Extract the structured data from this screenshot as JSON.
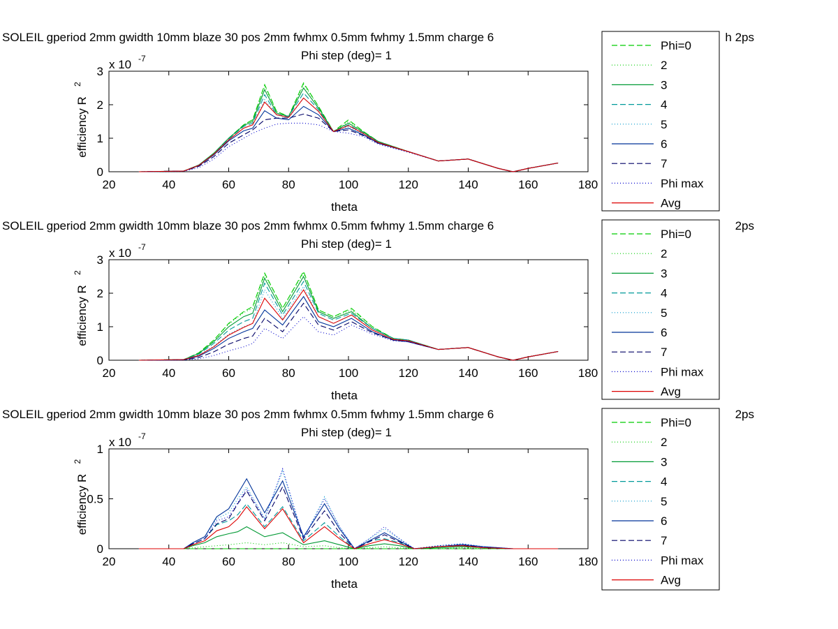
{
  "chart_data": [
    {
      "type": "line",
      "title": "SOLEIL gperiod 2mm gwidth 10mm blaze 30 pos 2mm fwhmx 0.5mm fwhmy 1.5mm charge 6",
      "title_right": "h 2ps",
      "subtitle": "Phi step (deg)= 1",
      "xlabel": "theta",
      "ylabel": "efficiency R",
      "ylabel_sup": "2",
      "y_exponent": "x 10",
      "y_exponent_sup": "-7",
      "xlim": [
        20,
        180
      ],
      "ylim": [
        0,
        3
      ],
      "xticks": [
        20,
        40,
        60,
        80,
        100,
        120,
        140,
        160,
        180
      ],
      "yticks": [
        0,
        1,
        2,
        3
      ],
      "grid": false,
      "legend_position": "right",
      "x": [
        30,
        45,
        50,
        55,
        60,
        65,
        68,
        72,
        76,
        80,
        85,
        90,
        95,
        100,
        105,
        110,
        120,
        130,
        140,
        150,
        155,
        160,
        170
      ],
      "series": [
        {
          "name": "Phi=0",
          "color": "#00cc00",
          "dash": "8,4",
          "values": [
            0,
            0.02,
            0.2,
            0.55,
            1.0,
            1.4,
            1.55,
            2.6,
            1.8,
            1.65,
            2.65,
            1.95,
            1.2,
            1.55,
            1.2,
            0.9,
            0.6,
            0.32,
            0.38,
            0.1,
            0,
            0.1,
            0.26
          ]
        },
        {
          "name": "2",
          "color": "#00cc00",
          "dash": "1,3",
          "values": [
            0,
            0.02,
            0.2,
            0.55,
            1.0,
            1.4,
            1.55,
            2.55,
            1.8,
            1.65,
            2.6,
            1.95,
            1.2,
            1.5,
            1.2,
            0.9,
            0.6,
            0.32,
            0.38,
            0.1,
            0,
            0.1,
            0.26
          ]
        },
        {
          "name": "3",
          "color": "#009933",
          "dash": "",
          "values": [
            0,
            0.02,
            0.2,
            0.55,
            1.0,
            1.38,
            1.5,
            2.45,
            1.75,
            1.65,
            2.5,
            1.9,
            1.2,
            1.45,
            1.18,
            0.9,
            0.6,
            0.32,
            0.38,
            0.1,
            0,
            0.1,
            0.26
          ]
        },
        {
          "name": "4",
          "color": "#009999",
          "dash": "8,4",
          "values": [
            0,
            0.02,
            0.2,
            0.53,
            0.98,
            1.35,
            1.45,
            2.3,
            1.7,
            1.65,
            2.35,
            1.85,
            1.2,
            1.4,
            1.15,
            0.88,
            0.6,
            0.32,
            0.38,
            0.1,
            0,
            0.1,
            0.26
          ]
        },
        {
          "name": "5",
          "color": "#0099cc",
          "dash": "1,3",
          "values": [
            0,
            0.02,
            0.19,
            0.52,
            0.96,
            1.3,
            1.4,
            2.15,
            1.7,
            1.6,
            2.2,
            1.8,
            1.2,
            1.35,
            1.12,
            0.87,
            0.6,
            0.32,
            0.38,
            0.1,
            0,
            0.1,
            0.26
          ]
        },
        {
          "name": "6",
          "color": "#003399",
          "dash": "",
          "values": [
            0,
            0.02,
            0.18,
            0.5,
            0.92,
            1.22,
            1.3,
            1.82,
            1.6,
            1.55,
            1.95,
            1.7,
            1.2,
            1.3,
            1.1,
            0.85,
            0.6,
            0.32,
            0.38,
            0.1,
            0,
            0.1,
            0.26
          ]
        },
        {
          "name": "7",
          "color": "#000066",
          "dash": "8,4",
          "values": [
            0,
            0.02,
            0.16,
            0.45,
            0.85,
            1.1,
            1.25,
            1.55,
            1.6,
            1.6,
            1.72,
            1.6,
            1.2,
            1.25,
            1.08,
            0.85,
            0.6,
            0.32,
            0.38,
            0.1,
            0,
            0.1,
            0.26
          ]
        },
        {
          "name": "Phi max",
          "color": "#0000cc",
          "dash": "1,3",
          "values": [
            0,
            0.01,
            0.12,
            0.38,
            0.75,
            1.0,
            1.15,
            1.3,
            1.42,
            1.45,
            1.45,
            1.4,
            1.2,
            1.15,
            1.05,
            0.82,
            0.58,
            0.32,
            0.38,
            0.1,
            0,
            0.1,
            0.26
          ]
        },
        {
          "name": "Avg",
          "color": "#dd0000",
          "dash": "",
          "values": [
            0,
            0.02,
            0.19,
            0.52,
            0.95,
            1.3,
            1.4,
            2.08,
            1.7,
            1.62,
            2.2,
            1.8,
            1.2,
            1.38,
            1.14,
            0.87,
            0.6,
            0.32,
            0.38,
            0.1,
            0,
            0.1,
            0.26
          ]
        }
      ]
    },
    {
      "type": "line",
      "title": "SOLEIL gperiod 2mm gwidth 10mm blaze 30 pos 2mm fwhmx 0.5mm fwhmy 1.5mm charge 6",
      "title_right": "2ps",
      "subtitle": "Phi step (deg)= 1",
      "xlabel": "theta",
      "ylabel": "efficiency R",
      "ylabel_sup": "2",
      "y_exponent": "x 10",
      "y_exponent_sup": "-7",
      "xlim": [
        20,
        180
      ],
      "ylim": [
        0,
        3
      ],
      "xticks": [
        20,
        40,
        60,
        80,
        100,
        120,
        140,
        160,
        180
      ],
      "yticks": [
        0,
        1,
        2,
        3
      ],
      "grid": false,
      "legend_position": "right",
      "x": [
        30,
        45,
        50,
        55,
        60,
        65,
        68,
        72,
        78,
        85,
        90,
        95,
        101,
        108,
        115,
        120,
        130,
        140,
        150,
        155,
        160,
        170
      ],
      "series": [
        {
          "name": "Phi=0",
          "color": "#00cc00",
          "dash": "8,4",
          "values": [
            0,
            0.02,
            0.22,
            0.6,
            1.1,
            1.45,
            1.6,
            2.6,
            1.55,
            2.65,
            1.5,
            1.3,
            1.55,
            1.0,
            0.65,
            0.6,
            0.32,
            0.38,
            0.1,
            0,
            0.1,
            0.26
          ]
        },
        {
          "name": "2",
          "color": "#00cc00",
          "dash": "1,3",
          "values": [
            0,
            0.02,
            0.21,
            0.58,
            1.08,
            1.42,
            1.55,
            2.55,
            1.55,
            2.6,
            1.5,
            1.3,
            1.5,
            1.0,
            0.65,
            0.6,
            0.32,
            0.38,
            0.1,
            0,
            0.1,
            0.26
          ]
        },
        {
          "name": "3",
          "color": "#009933",
          "dash": "",
          "values": [
            0,
            0.02,
            0.2,
            0.55,
            1.0,
            1.3,
            1.4,
            2.45,
            1.45,
            2.5,
            1.45,
            1.25,
            1.45,
            0.95,
            0.65,
            0.6,
            0.32,
            0.38,
            0.1,
            0,
            0.1,
            0.26
          ]
        },
        {
          "name": "4",
          "color": "#009999",
          "dash": "8,4",
          "values": [
            0,
            0.02,
            0.18,
            0.5,
            0.9,
            1.15,
            1.25,
            2.3,
            1.35,
            2.35,
            1.4,
            1.2,
            1.4,
            0.95,
            0.65,
            0.6,
            0.32,
            0.38,
            0.1,
            0,
            0.1,
            0.26
          ]
        },
        {
          "name": "5",
          "color": "#0099cc",
          "dash": "1,3",
          "values": [
            0,
            0.02,
            0.15,
            0.42,
            0.78,
            1.0,
            1.1,
            2.1,
            1.25,
            2.2,
            1.3,
            1.1,
            1.35,
            0.9,
            0.62,
            0.58,
            0.32,
            0.38,
            0.1,
            0,
            0.1,
            0.26
          ]
        },
        {
          "name": "6",
          "color": "#003399",
          "dash": "",
          "values": [
            0,
            0.01,
            0.12,
            0.35,
            0.65,
            0.85,
            0.95,
            1.5,
            1.05,
            1.9,
            1.15,
            1.0,
            1.25,
            0.85,
            0.6,
            0.55,
            0.32,
            0.38,
            0.1,
            0,
            0.1,
            0.26
          ]
        },
        {
          "name": "7",
          "color": "#000066",
          "dash": "8,4",
          "values": [
            0,
            0.01,
            0.08,
            0.25,
            0.48,
            0.65,
            0.72,
            1.25,
            0.85,
            1.7,
            1.05,
            0.9,
            1.15,
            0.82,
            0.6,
            0.55,
            0.32,
            0.38,
            0.1,
            0,
            0.1,
            0.26
          ]
        },
        {
          "name": "Phi max",
          "color": "#0000cc",
          "dash": "1,3",
          "values": [
            0,
            0.01,
            0.04,
            0.14,
            0.28,
            0.4,
            0.5,
            0.95,
            0.65,
            1.3,
            0.85,
            0.75,
            1.05,
            0.78,
            0.58,
            0.55,
            0.32,
            0.38,
            0.1,
            0,
            0.1,
            0.26
          ]
        },
        {
          "name": "Avg",
          "color": "#dd0000",
          "dash": "",
          "values": [
            0,
            0.02,
            0.14,
            0.4,
            0.75,
            0.98,
            1.1,
            1.85,
            1.2,
            2.1,
            1.3,
            1.1,
            1.35,
            0.9,
            0.62,
            0.58,
            0.32,
            0.38,
            0.1,
            0,
            0.1,
            0.26
          ]
        }
      ]
    },
    {
      "type": "line",
      "title": "SOLEIL gperiod 2mm gwidth 10mm blaze 30 pos 2mm fwhmx 0.5mm fwhmy 1.5mm charge 6",
      "title_right": "2ps",
      "subtitle": "Phi step (deg)= 1",
      "xlabel": "theta",
      "ylabel": "efficiency R",
      "ylabel_sup": "2",
      "y_exponent": "x 10",
      "y_exponent_sup": "-7",
      "xlim": [
        20,
        180
      ],
      "ylim": [
        0,
        1
      ],
      "xticks": [
        20,
        40,
        60,
        80,
        100,
        120,
        140,
        160,
        180
      ],
      "yticks": [
        0,
        0.5,
        1
      ],
      "grid": false,
      "legend_position": "right",
      "x": [
        30,
        45,
        48,
        52,
        56,
        60,
        63,
        66,
        72,
        78,
        85,
        92,
        97,
        102,
        107,
        112,
        117,
        122,
        130,
        138,
        145,
        155,
        170
      ],
      "series": [
        {
          "name": "Phi=0",
          "color": "#00cc00",
          "dash": "8,4",
          "values": [
            0,
            0,
            0,
            0,
            0,
            0,
            0,
            0,
            0,
            0,
            0,
            0,
            0,
            0,
            0,
            0,
            0,
            0,
            0,
            0,
            0,
            0,
            0
          ]
        },
        {
          "name": "2",
          "color": "#00cc00",
          "dash": "1,3",
          "values": [
            0,
            0,
            0.01,
            0.02,
            0.03,
            0.04,
            0.05,
            0.06,
            0.04,
            0.06,
            0.02,
            0.03,
            0.01,
            0,
            0.01,
            0.02,
            0.01,
            0,
            0,
            0.01,
            0,
            0,
            0
          ]
        },
        {
          "name": "3",
          "color": "#009933",
          "dash": "",
          "values": [
            0,
            0,
            0.03,
            0.06,
            0.12,
            0.15,
            0.17,
            0.22,
            0.12,
            0.16,
            0.04,
            0.08,
            0.04,
            0,
            0.03,
            0.05,
            0.03,
            0,
            0.01,
            0.02,
            0.01,
            0,
            0
          ]
        },
        {
          "name": "4",
          "color": "#009999",
          "dash": "8,4",
          "values": [
            0,
            0,
            0.05,
            0.1,
            0.24,
            0.28,
            0.34,
            0.45,
            0.22,
            0.42,
            0.08,
            0.26,
            0.12,
            0,
            0.08,
            0.1,
            0.06,
            0,
            0.02,
            0.03,
            0.01,
            0,
            0
          ]
        },
        {
          "name": "5",
          "color": "#0099cc",
          "dash": "1,3",
          "values": [
            0,
            0,
            0.06,
            0.12,
            0.3,
            0.36,
            0.5,
            0.62,
            0.3,
            0.78,
            0.1,
            0.52,
            0.22,
            0,
            0.1,
            0.2,
            0.1,
            0,
            0.03,
            0.05,
            0.02,
            0,
            0
          ]
        },
        {
          "name": "6",
          "color": "#003399",
          "dash": "",
          "values": [
            0,
            0,
            0.06,
            0.12,
            0.32,
            0.4,
            0.55,
            0.7,
            0.36,
            0.68,
            0.12,
            0.45,
            0.2,
            0,
            0.08,
            0.16,
            0.08,
            0,
            0.02,
            0.04,
            0.02,
            0,
            0
          ]
        },
        {
          "name": "7",
          "color": "#000066",
          "dash": "8,4",
          "values": [
            0,
            0,
            0.05,
            0.1,
            0.25,
            0.3,
            0.45,
            0.58,
            0.28,
            0.62,
            0.1,
            0.38,
            0.16,
            0,
            0.07,
            0.14,
            0.07,
            0,
            0.02,
            0.04,
            0.01,
            0,
            0
          ]
        },
        {
          "name": "Phi max",
          "color": "#0000cc",
          "dash": "1,3",
          "values": [
            0,
            0,
            0.05,
            0.1,
            0.28,
            0.32,
            0.46,
            0.6,
            0.3,
            0.8,
            0.1,
            0.5,
            0.22,
            0,
            0.1,
            0.22,
            0.1,
            0,
            0.03,
            0.05,
            0.02,
            0,
            0
          ]
        },
        {
          "name": "Avg",
          "color": "#dd0000",
          "dash": "",
          "values": [
            0,
            0,
            0.04,
            0.08,
            0.18,
            0.22,
            0.3,
            0.42,
            0.2,
            0.4,
            0.06,
            0.22,
            0.1,
            0,
            0.05,
            0.09,
            0.05,
            0,
            0.02,
            0.03,
            0.01,
            0,
            0
          ]
        }
      ]
    }
  ]
}
